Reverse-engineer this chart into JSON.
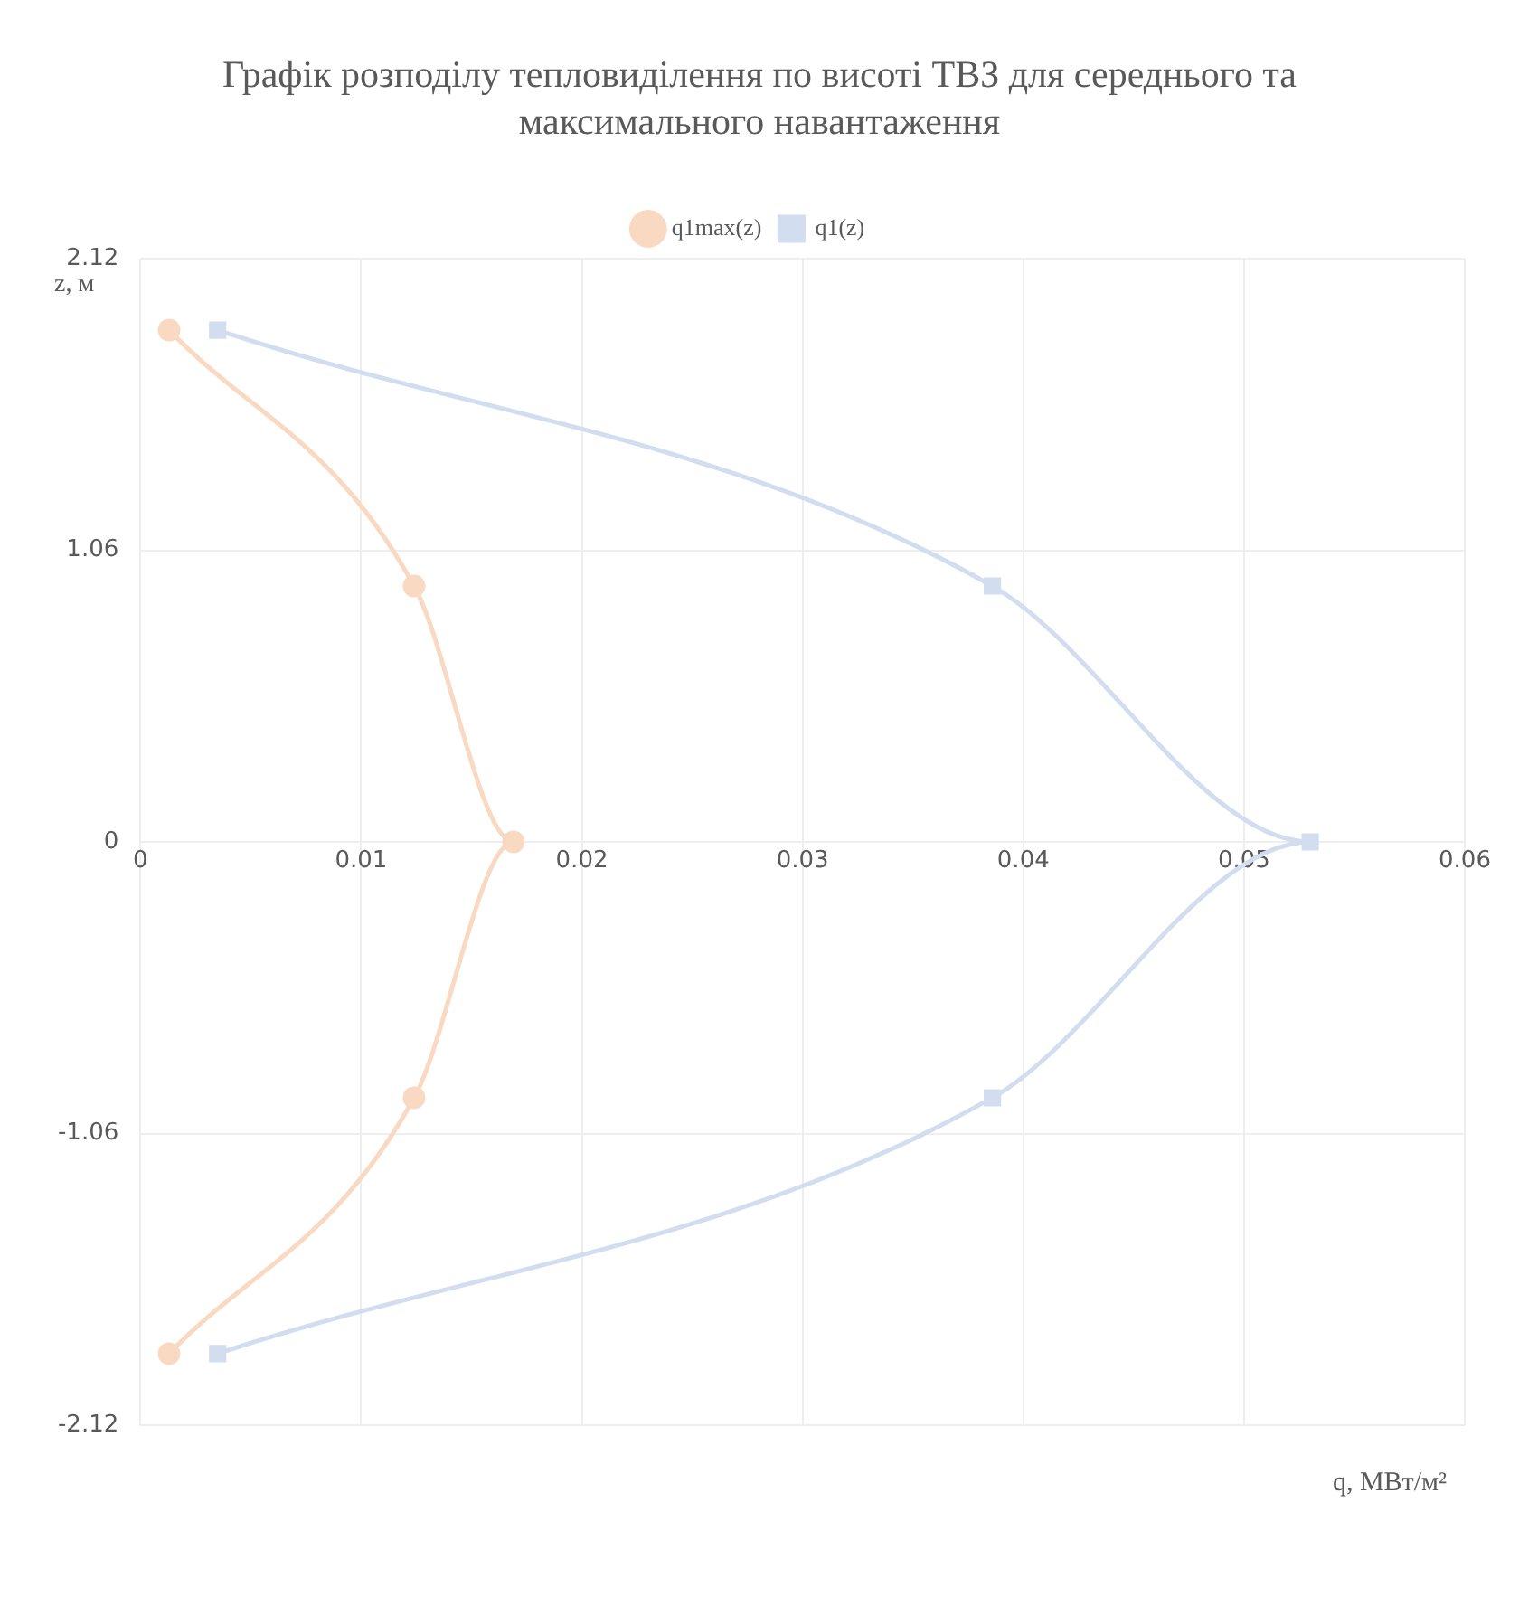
{
  "chart_data": {
    "type": "line",
    "title": "Графік розподілу тепловиділення по висоті ТВЗ для середнього та максимального навантаження",
    "xlabel": "q, МВт/м²",
    "ylabel": "z, м",
    "xlim": [
      0,
      0.06
    ],
    "xticks": [
      0,
      0.01,
      0.02,
      0.03,
      0.04,
      0.05,
      0.06
    ],
    "ylim": [
      -2.12,
      2.12
    ],
    "yticks": [
      -2.12,
      -1.06,
      0,
      1.06,
      2.12
    ],
    "grid": true,
    "legend": "top",
    "series": [
      {
        "name": "q1max(z)",
        "color": "#f9d9c2",
        "marker": "circle",
        "x": [
          0.0013,
          0.0124,
          0.0169,
          0.0124,
          0.0013
        ],
        "values": [
          1.86,
          0.93,
          0,
          -0.93,
          -1.86
        ]
      },
      {
        "name": "q1(z)",
        "color": "#d3ddf0",
        "marker": "square",
        "x": [
          0.0035,
          0.0386,
          0.053,
          0.0386,
          0.0035
        ],
        "values": [
          1.86,
          0.93,
          0,
          -0.93,
          -1.86
        ]
      }
    ]
  }
}
